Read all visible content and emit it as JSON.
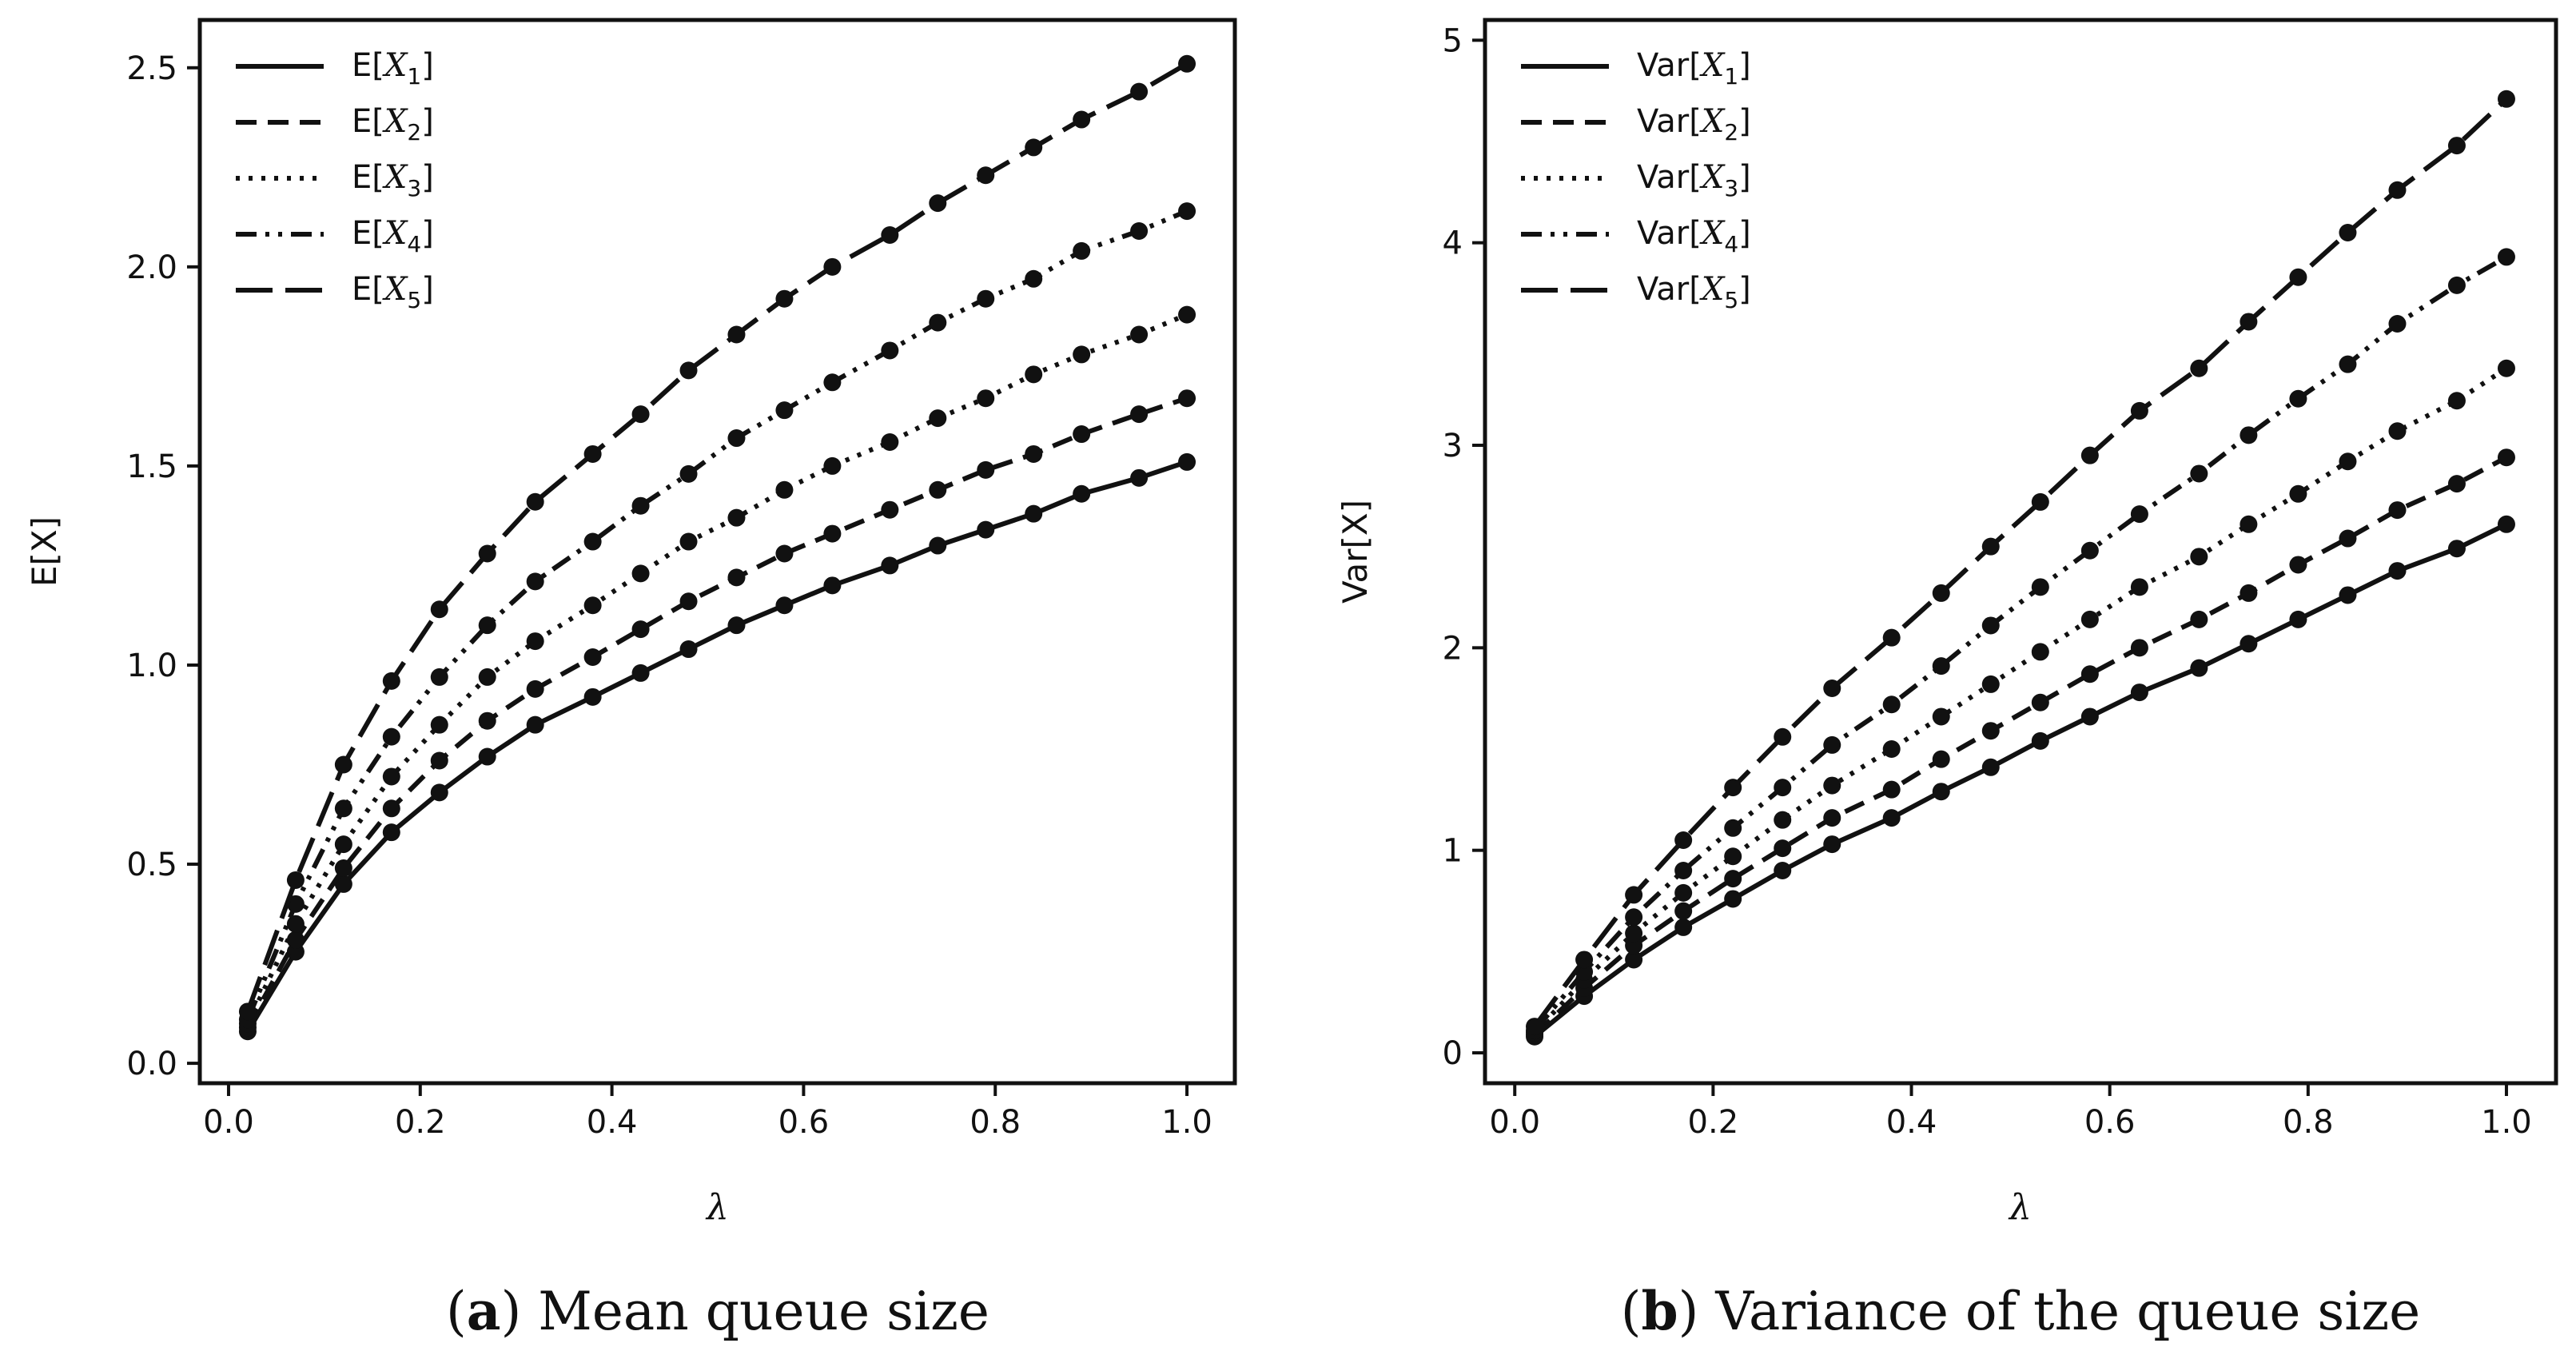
{
  "chart_data": [
    {
      "type": "line",
      "caption_letter": "a",
      "caption_text": "Mean queue size",
      "xlabel": "λ",
      "ylabel": "E[X]",
      "xlim": [
        -0.03,
        1.05
      ],
      "ylim": [
        -0.05,
        2.62
      ],
      "xticks": [
        0.0,
        0.2,
        0.4,
        0.6,
        0.8,
        1.0
      ],
      "xtick_labels": [
        "0.0",
        "0.2",
        "0.4",
        "0.6",
        "0.8",
        "1.0"
      ],
      "yticks": [
        0.0,
        0.5,
        1.0,
        1.5,
        2.0,
        2.5
      ],
      "ytick_labels": [
        "0.0",
        "0.5",
        "1.0",
        "1.5",
        "2.0",
        "2.5"
      ],
      "legend_position": "top-left",
      "grid": false,
      "x": [
        0.02,
        0.07,
        0.12,
        0.17,
        0.22,
        0.27,
        0.32,
        0.38,
        0.43,
        0.48,
        0.53,
        0.58,
        0.63,
        0.69,
        0.74,
        0.79,
        0.84,
        0.89,
        0.95,
        1.0
      ],
      "series": [
        {
          "name": "E[X1]",
          "label_prefix": "E",
          "var": "X",
          "sub": "1",
          "dash": "solid",
          "values": [
            0.08,
            0.28,
            0.45,
            0.58,
            0.68,
            0.77,
            0.85,
            0.92,
            0.98,
            1.04,
            1.1,
            1.15,
            1.2,
            1.25,
            1.3,
            1.34,
            1.38,
            1.43,
            1.47,
            1.51
          ]
        },
        {
          "name": "E[X2]",
          "label_prefix": "E",
          "var": "X",
          "sub": "2",
          "dash": "dashed",
          "values": [
            0.09,
            0.31,
            0.49,
            0.64,
            0.76,
            0.86,
            0.94,
            1.02,
            1.09,
            1.16,
            1.22,
            1.28,
            1.33,
            1.39,
            1.44,
            1.49,
            1.53,
            1.58,
            1.63,
            1.67
          ]
        },
        {
          "name": "E[X3]",
          "label_prefix": "E",
          "var": "X",
          "sub": "3",
          "dash": "dotted",
          "values": [
            0.1,
            0.35,
            0.55,
            0.72,
            0.85,
            0.97,
            1.06,
            1.15,
            1.23,
            1.31,
            1.37,
            1.44,
            1.5,
            1.56,
            1.62,
            1.67,
            1.73,
            1.78,
            1.83,
            1.88
          ]
        },
        {
          "name": "E[X4]",
          "label_prefix": "E",
          "var": "X",
          "sub": "4",
          "dash": "dashdotdot",
          "values": [
            0.11,
            0.4,
            0.64,
            0.82,
            0.97,
            1.1,
            1.21,
            1.31,
            1.4,
            1.48,
            1.57,
            1.64,
            1.71,
            1.79,
            1.86,
            1.92,
            1.97,
            2.04,
            2.09,
            2.14
          ]
        },
        {
          "name": "E[X5]",
          "label_prefix": "E",
          "var": "X",
          "sub": "5",
          "dash": "longdash",
          "values": [
            0.13,
            0.46,
            0.75,
            0.96,
            1.14,
            1.28,
            1.41,
            1.53,
            1.63,
            1.74,
            1.83,
            1.92,
            2.0,
            2.08,
            2.16,
            2.23,
            2.3,
            2.37,
            2.44,
            2.51
          ]
        }
      ]
    },
    {
      "type": "line",
      "caption_letter": "b",
      "caption_text": "Variance of the queue size",
      "xlabel": "λ",
      "ylabel": "Var[X]",
      "xlim": [
        -0.03,
        1.05
      ],
      "ylim": [
        -0.15,
        5.1
      ],
      "xticks": [
        0.0,
        0.2,
        0.4,
        0.6,
        0.8,
        1.0
      ],
      "xtick_labels": [
        "0.0",
        "0.2",
        "0.4",
        "0.6",
        "0.8",
        "1.0"
      ],
      "yticks": [
        0,
        1,
        2,
        3,
        4,
        5
      ],
      "ytick_labels": [
        "0",
        "1",
        "2",
        "3",
        "4",
        "5"
      ],
      "legend_position": "top-left",
      "grid": false,
      "x": [
        0.02,
        0.07,
        0.12,
        0.17,
        0.22,
        0.27,
        0.32,
        0.38,
        0.43,
        0.48,
        0.53,
        0.58,
        0.63,
        0.69,
        0.74,
        0.79,
        0.84,
        0.89,
        0.95,
        1.0
      ],
      "series": [
        {
          "name": "Var[X1]",
          "label_prefix": "Var",
          "var": "X",
          "sub": "1",
          "dash": "solid",
          "values": [
            0.08,
            0.28,
            0.46,
            0.62,
            0.76,
            0.9,
            1.03,
            1.16,
            1.29,
            1.41,
            1.54,
            1.66,
            1.78,
            1.9,
            2.02,
            2.14,
            2.26,
            2.38,
            2.49,
            2.61
          ]
        },
        {
          "name": "Var[X2]",
          "label_prefix": "Var",
          "var": "X",
          "sub": "2",
          "dash": "dashed",
          "values": [
            0.09,
            0.32,
            0.53,
            0.7,
            0.86,
            1.01,
            1.16,
            1.3,
            1.45,
            1.59,
            1.73,
            1.87,
            2.0,
            2.14,
            2.27,
            2.41,
            2.54,
            2.68,
            2.81,
            2.94
          ]
        },
        {
          "name": "Var[X3]",
          "label_prefix": "Var",
          "var": "X",
          "sub": "3",
          "dash": "dotted",
          "values": [
            0.1,
            0.36,
            0.59,
            0.79,
            0.97,
            1.15,
            1.32,
            1.5,
            1.66,
            1.82,
            1.98,
            2.14,
            2.3,
            2.45,
            2.61,
            2.76,
            2.92,
            3.07,
            3.22,
            3.38
          ]
        },
        {
          "name": "Var[X4]",
          "label_prefix": "Var",
          "var": "X",
          "sub": "4",
          "dash": "dashdotdot",
          "values": [
            0.11,
            0.4,
            0.67,
            0.9,
            1.11,
            1.31,
            1.52,
            1.72,
            1.91,
            2.11,
            2.3,
            2.48,
            2.66,
            2.86,
            3.05,
            3.23,
            3.4,
            3.6,
            3.79,
            3.93
          ]
        },
        {
          "name": "Var[X5]",
          "label_prefix": "Var",
          "var": "X",
          "sub": "5",
          "dash": "longdash",
          "values": [
            0.13,
            0.46,
            0.78,
            1.05,
            1.31,
            1.56,
            1.8,
            2.05,
            2.27,
            2.5,
            2.72,
            2.95,
            3.17,
            3.38,
            3.61,
            3.83,
            4.05,
            4.26,
            4.48,
            4.71
          ]
        }
      ]
    }
  ]
}
